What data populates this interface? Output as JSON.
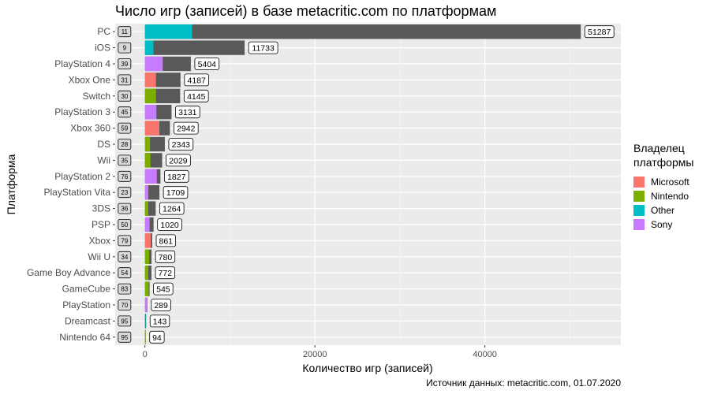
{
  "chart_data": {
    "type": "bar",
    "orientation": "horizontal",
    "title": "Число игр (записей) в базе metacritic.com по платформам",
    "xlabel": "Количество игр (записей)",
    "ylabel": "Платформа",
    "caption": "Источник данных: metacritic.com, 01.07.2020",
    "xlim": [
      -3500,
      56000
    ],
    "xticks": [
      0,
      20000,
      40000
    ],
    "xtick_labels": [
      "0",
      "20000",
      "40000"
    ],
    "grid": true,
    "legend_position": "right",
    "legend_title": "Владелец платформы",
    "legend_entries": [
      "Microsoft",
      "Nintendo",
      "Other",
      "Sony"
    ],
    "colors": {
      "Microsoft": "#f8766d",
      "Nintendo": "#7cae00",
      "Other": "#00bfc4",
      "Sony": "#c77cff",
      "total_bar": "#595959",
      "panel": "#ebebeb"
    },
    "categories": [
      "PC",
      "iOS",
      "PlayStation 4",
      "Xbox One",
      "Switch",
      "PlayStation 3",
      "Xbox 360",
      "DS",
      "Wii",
      "PlayStation 2",
      "PlayStation Vita",
      "3DS",
      "PSP",
      "Xbox",
      "Wii U",
      "Game Boy Advance",
      "GameCube",
      "PlayStation",
      "Dreamcast",
      "Nintendo 64"
    ],
    "owners": [
      "Other",
      "Other",
      "Sony",
      "Microsoft",
      "Nintendo",
      "Sony",
      "Microsoft",
      "Nintendo",
      "Nintendo",
      "Sony",
      "Sony",
      "Nintendo",
      "Sony",
      "Microsoft",
      "Nintendo",
      "Nintendo",
      "Nintendo",
      "Sony",
      "Other",
      "Nintendo"
    ],
    "total_values": [
      51287,
      11733,
      5404,
      4187,
      4145,
      3131,
      2942,
      2343,
      2029,
      1827,
      1709,
      1264,
      1020,
      861,
      780,
      772,
      545,
      289,
      143,
      94
    ],
    "owner_values": [
      5550,
      1000,
      2100,
      1300,
      1300,
      1350,
      1700,
      600,
      650,
      1400,
      400,
      400,
      550,
      700,
      500,
      400,
      450,
      250,
      80,
      80
    ],
    "left_labels": [
      "11",
      "9",
      "39",
      "31",
      "30",
      "45",
      "59",
      "28",
      "35",
      "76",
      "23",
      "36",
      "50",
      "79",
      "34",
      "54",
      "83",
      "70",
      "95",
      "95"
    ]
  }
}
